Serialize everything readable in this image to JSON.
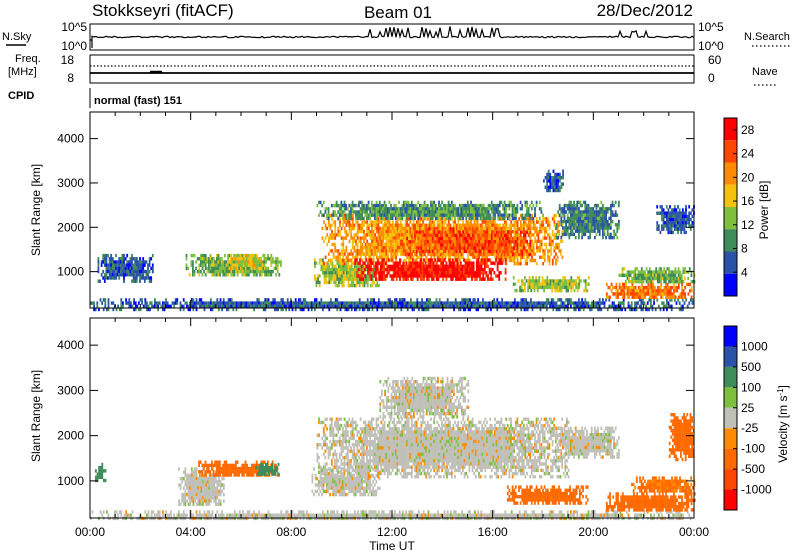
{
  "header": {
    "station": "Stokkseyri (fitACF)",
    "beam": "Beam 01",
    "date": "28/Dec/2012"
  },
  "strips": {
    "nsky_label": "N.Sky",
    "nsky_ticks": [
      "10^5",
      "10^0"
    ],
    "nsky_right_ticks": [
      "10^5",
      "10^0"
    ],
    "nsearch_label": "N.Search",
    "freq_label_1": "Freq.",
    "freq_label_2": "[MHz]",
    "freq_ticks": [
      "18",
      "8"
    ],
    "nave_label": "Nave",
    "nave_ticks": [
      "60",
      "0"
    ],
    "cpid_label": "CPID",
    "cpid_text": "normal (fast) 151"
  },
  "colors": {
    "power_scale": [
      "#0000ff",
      "#2a53a8",
      "#3f8c5a",
      "#7fbf3f",
      "#f4c20d",
      "#ff8c00",
      "#ff4500",
      "#ff0000"
    ],
    "velocity_scale": [
      "#0000ff",
      "#2a53a8",
      "#3f8c5a",
      "#7fbf3f",
      "#c0c0b8",
      "#ff8c00",
      "#ff6a00",
      "#ff4500",
      "#ff0000"
    ],
    "ground_scatter": "#c0c0b8"
  },
  "chart_data": [
    {
      "type": "heatmap",
      "name": "power",
      "ylabel": "Slant Range [km]",
      "xlabel": "Time UT",
      "x_ticks": [
        "00:00",
        "04:00",
        "08:00",
        "12:00",
        "16:00",
        "20:00",
        "00:00"
      ],
      "y_ticks": [
        "1000",
        "2000",
        "3000",
        "4000"
      ],
      "xlim": [
        0,
        24
      ],
      "ylim": [
        180,
        4600
      ],
      "colorbar_label": "Power [dB]",
      "colorbar_ticks": [
        "4",
        "8",
        "12",
        "16",
        "20",
        "24",
        "28"
      ],
      "colorbar_range": [
        0,
        30
      ],
      "regions": [
        {
          "t0": 0.0,
          "t1": 24.0,
          "r0": 180,
          "r1": 400,
          "value": 6
        },
        {
          "t0": 0.3,
          "t1": 2.5,
          "r0": 800,
          "r1": 1400,
          "value": 6
        },
        {
          "t0": 3.8,
          "t1": 7.6,
          "r0": 900,
          "r1": 1400,
          "value": 12
        },
        {
          "t0": 5.5,
          "t1": 7.0,
          "r0": 1100,
          "r1": 1400,
          "value": 16
        },
        {
          "t0": 8.9,
          "t1": 11.5,
          "r0": 700,
          "r1": 1300,
          "value": 14
        },
        {
          "t0": 9.2,
          "t1": 18.8,
          "r0": 1200,
          "r1": 2300,
          "value": 20
        },
        {
          "t0": 10.5,
          "t1": 16.5,
          "r0": 800,
          "r1": 1300,
          "value": 28
        },
        {
          "t0": 12.5,
          "t1": 17.5,
          "r0": 1400,
          "r1": 2000,
          "value": 24
        },
        {
          "t0": 9.0,
          "t1": 18.0,
          "r0": 2200,
          "r1": 2600,
          "value": 10
        },
        {
          "t0": 16.8,
          "t1": 19.8,
          "r0": 600,
          "r1": 900,
          "value": 14
        },
        {
          "t0": 18.5,
          "t1": 21.0,
          "r0": 1800,
          "r1": 2600,
          "value": 8
        },
        {
          "t0": 20.5,
          "t1": 23.9,
          "r0": 400,
          "r1": 750,
          "value": 22
        },
        {
          "t0": 21.0,
          "t1": 24.0,
          "r0": 750,
          "r1": 1100,
          "value": 12
        },
        {
          "t0": 22.5,
          "t1": 24.0,
          "r0": 1900,
          "r1": 2500,
          "value": 6
        },
        {
          "t0": 18.0,
          "t1": 18.8,
          "r0": 2800,
          "r1": 3300,
          "value": 6
        }
      ]
    },
    {
      "type": "heatmap",
      "name": "velocity",
      "ylabel": "Slant Range [km]",
      "xlabel": "Time UT",
      "x_ticks": [
        "00:00",
        "04:00",
        "08:00",
        "12:00",
        "16:00",
        "20:00",
        "00:00"
      ],
      "y_ticks": [
        "1000",
        "2000",
        "3000",
        "4000"
      ],
      "xlim": [
        0,
        24
      ],
      "ylim": [
        180,
        4600
      ],
      "colorbar_label": "Velocity [m s^-1]",
      "colorbar_ticks": [
        "1000",
        "500",
        "100",
        "25",
        "-25",
        "-100",
        "-500",
        "-1000"
      ],
      "regions": [
        {
          "t0": 0.0,
          "t1": 24.0,
          "r0": 180,
          "r1": 350,
          "value": 0
        },
        {
          "t0": 0.2,
          "t1": 0.6,
          "r0": 1000,
          "r1": 1400,
          "value": 150
        },
        {
          "t0": 3.5,
          "t1": 5.3,
          "r0": 500,
          "r1": 1300,
          "value": 0
        },
        {
          "t0": 4.3,
          "t1": 7.5,
          "r0": 1100,
          "r1": 1450,
          "value": -150
        },
        {
          "t0": 6.5,
          "t1": 7.5,
          "r0": 1150,
          "r1": 1400,
          "value": 150
        },
        {
          "t0": 8.8,
          "t1": 11.5,
          "r0": 700,
          "r1": 1300,
          "value": 0
        },
        {
          "t0": 9.0,
          "t1": 19.0,
          "r0": 1100,
          "r1": 2400,
          "value": 0
        },
        {
          "t0": 11.5,
          "t1": 15.0,
          "r0": 2400,
          "r1": 3300,
          "value": 0
        },
        {
          "t0": 16.5,
          "t1": 19.8,
          "r0": 500,
          "r1": 900,
          "value": -150
        },
        {
          "t0": 18.5,
          "t1": 21.0,
          "r0": 1500,
          "r1": 2200,
          "value": 0
        },
        {
          "t0": 20.5,
          "t1": 24.0,
          "r0": 350,
          "r1": 750,
          "value": -250
        },
        {
          "t0": 21.5,
          "t1": 24.0,
          "r0": 750,
          "r1": 1100,
          "value": -120
        },
        {
          "t0": 23.0,
          "t1": 24.0,
          "r0": 1500,
          "r1": 2500,
          "value": -150
        }
      ]
    }
  ]
}
